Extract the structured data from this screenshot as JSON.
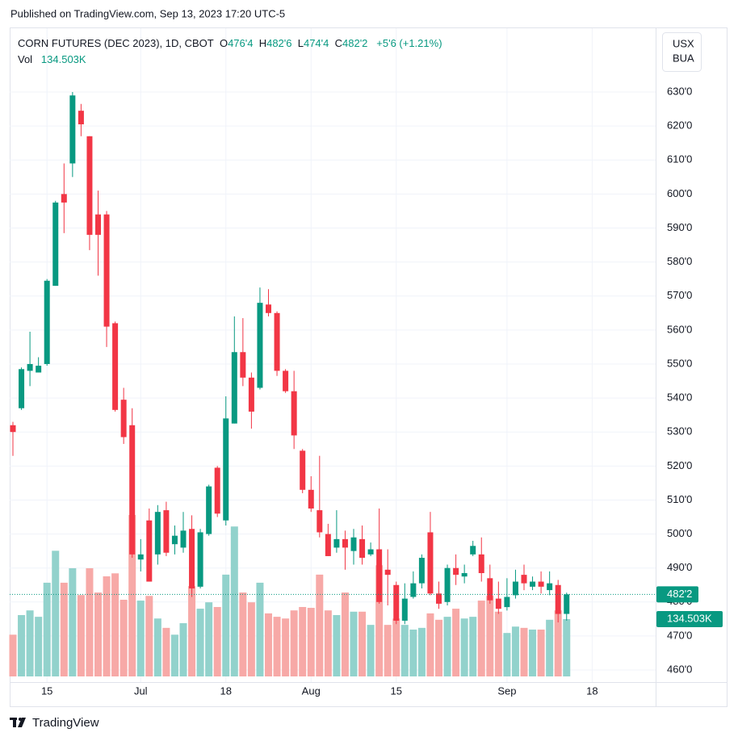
{
  "published": "Published on TradingView.com, Sep 13, 2023 17:20 UTC-5",
  "brand": "TradingView",
  "chart_data": {
    "type": "candlestick",
    "title": "CORN FUTURES (DEC 2023), 1D, CBOT",
    "ohlc_legend": [
      {
        "label": "O",
        "value": "476'4"
      },
      {
        "label": "H",
        "value": "482'6"
      },
      {
        "label": "L",
        "value": "474'4"
      },
      {
        "label": "C",
        "value": "482'2"
      }
    ],
    "change": "+5'6 (+1.21%)",
    "vol_legend": {
      "label": "Vol",
      "value": "134.503K"
    },
    "currency": "USX",
    "unit": "BUA",
    "categories": [
      null,
      null,
      null,
      null,
      "15",
      null,
      null,
      null,
      null,
      null,
      null,
      null,
      null,
      null,
      null,
      "Jul",
      null,
      null,
      null,
      null,
      null,
      null,
      null,
      null,
      null,
      "18",
      null,
      null,
      null,
      null,
      null,
      null,
      null,
      null,
      null,
      "Aug",
      null,
      null,
      null,
      null,
      null,
      null,
      null,
      null,
      null,
      "15",
      null,
      null,
      null,
      null,
      null,
      null,
      null,
      null,
      null,
      null,
      null,
      null,
      "Sep",
      null,
      null,
      null,
      null,
      null,
      null,
      null,
      null,
      null,
      "18"
    ],
    "open": [
      532,
      537,
      548,
      547.5,
      550,
      573,
      600,
      609,
      624.5,
      617,
      594,
      594,
      562,
      539.5,
      532,
      492.5,
      504,
      494,
      507,
      497,
      496,
      501.5,
      484.5,
      500,
      519.5,
      504,
      532.5,
      553.5,
      546,
      543,
      567.5,
      565,
      548,
      542,
      524.5,
      513,
      507,
      500,
      496,
      498.5,
      495,
      498.5,
      494,
      495.5,
      489.5,
      485,
      474.5,
      481.5,
      485.5,
      500.5,
      482.5,
      480,
      490,
      487.5,
      494,
      494,
      487,
      481,
      478.5,
      482,
      488,
      484.5,
      486,
      483.5,
      485,
      476.5,
      null,
      null,
      null
    ],
    "high": [
      533,
      549,
      559.5,
      552,
      575,
      598,
      609,
      630,
      626.5,
      617,
      601,
      595,
      562.5,
      543,
      537,
      498.5,
      507.5,
      508.5,
      509.5,
      502.5,
      506.5,
      505.5,
      501.5,
      514.5,
      520,
      540.5,
      564,
      563.5,
      547.5,
      572.5,
      572,
      565.5,
      548.5,
      548,
      525,
      517,
      523,
      503,
      507,
      501,
      501.5,
      502.5,
      497.5,
      507.5,
      495.5,
      486,
      485.5,
      489,
      494,
      506.5,
      486,
      491,
      494,
      491,
      498,
      499,
      491,
      486,
      487,
      489.5,
      491,
      487.5,
      489,
      489,
      486.5,
      482.75,
      null,
      null,
      null
    ],
    "low": [
      523,
      536.5,
      543.5,
      547.5,
      549.5,
      573,
      588.5,
      605,
      617,
      583.5,
      576,
      555,
      536,
      526.5,
      493,
      489,
      486,
      491,
      493.5,
      494,
      494.5,
      481.5,
      484,
      499.5,
      505,
      502.5,
      532.5,
      543.5,
      531,
      542.5,
      564,
      546.5,
      541.5,
      525,
      512,
      506.5,
      499,
      493.5,
      494.5,
      489.5,
      491,
      491,
      493.5,
      479.5,
      479,
      473.5,
      473.5,
      481,
      484,
      482,
      478,
      479,
      485,
      485.5,
      493.5,
      486,
      479.5,
      476.5,
      477.5,
      481,
      483.5,
      483.5,
      482.5,
      482,
      474,
      474.5,
      null,
      null,
      null
    ],
    "close": [
      530,
      548.5,
      550,
      549.5,
      574.5,
      597.5,
      597.5,
      629,
      620.5,
      588,
      588,
      561,
      536.5,
      528.5,
      494,
      494,
      486,
      506.5,
      494.5,
      499.5,
      501,
      484,
      500.5,
      514,
      506,
      534,
      553.5,
      546,
      536,
      568,
      565,
      548,
      542,
      529,
      513,
      507.5,
      500.5,
      493.5,
      498.5,
      496,
      499,
      493,
      495.5,
      480,
      488,
      474.5,
      481,
      485.5,
      493,
      482.5,
      479.5,
      490,
      488,
      488.5,
      496.5,
      488.5,
      480.5,
      478,
      481.5,
      486,
      485.5,
      486,
      484.5,
      485.5,
      476.5,
      482.25,
      null,
      null,
      null
    ],
    "volume": [
      98000,
      144000,
      155000,
      140000,
      220000,
      295000,
      220000,
      254000,
      191000,
      254000,
      197000,
      235000,
      242000,
      180000,
      379000,
      178000,
      189000,
      136000,
      114000,
      98000,
      125000,
      212000,
      159000,
      174000,
      163000,
      239000,
      352000,
      197000,
      174000,
      220000,
      148000,
      140000,
      136000,
      155000,
      163000,
      161000,
      239000,
      155000,
      144000,
      197000,
      152000,
      152000,
      121000,
      261000,
      121000,
      136000,
      121000,
      110000,
      114000,
      148000,
      133000,
      140000,
      159000,
      136000,
      140000,
      178000,
      189000,
      152000,
      102000,
      117000,
      114000,
      110000,
      110000,
      133000,
      155000,
      134503,
      null,
      null,
      null
    ],
    "up_color": "#089981",
    "down_color": "#f23645",
    "volume_up_color": "#92d2cc",
    "volume_down_color": "#f7a9a7",
    "price_tag": {
      "value": 482.25,
      "label": "482'2"
    },
    "volume_tag": {
      "value": 134503,
      "label": "134.503K"
    },
    "ylim": [
      456.45,
      648.76
    ],
    "yticks": [
      {
        "value": 460,
        "label": "460'0"
      },
      {
        "value": 470,
        "label": "470'0"
      },
      {
        "value": 480,
        "label": "480'0"
      },
      {
        "value": 490,
        "label": "490'0"
      },
      {
        "value": 500,
        "label": "500'0"
      },
      {
        "value": 510,
        "label": "510'0"
      },
      {
        "value": 520,
        "label": "520'0"
      },
      {
        "value": 530,
        "label": "530'0"
      },
      {
        "value": 540,
        "label": "540'0"
      },
      {
        "value": 550,
        "label": "550'0"
      },
      {
        "value": 560,
        "label": "560'0"
      },
      {
        "value": 570,
        "label": "570'0"
      },
      {
        "value": 580,
        "label": "580'0"
      },
      {
        "value": 590,
        "label": "590'0"
      },
      {
        "value": 600,
        "label": "600'0"
      },
      {
        "value": 610,
        "label": "610'0"
      },
      {
        "value": 620,
        "label": "620'0"
      },
      {
        "value": 630,
        "label": "630'0"
      }
    ],
    "grid": true
  }
}
